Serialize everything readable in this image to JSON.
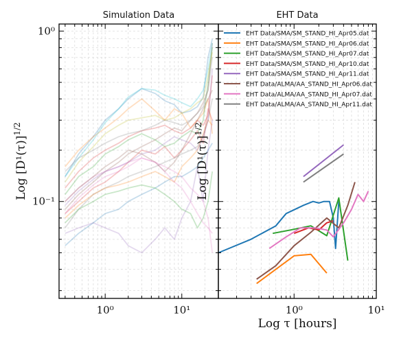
{
  "chart_data": [
    {
      "type": "line",
      "title": "Simulation Data",
      "ylabel": "Log [D¹(τ)]^1/2",
      "xlabel": "",
      "xscale": "log",
      "yscale": "log",
      "xlim": [
        0.25,
        30
      ],
      "ylim": [
        0.027,
        1.1
      ],
      "x_ticks": [
        1,
        10
      ],
      "x_tick_labels": [
        "10⁰",
        "10¹"
      ],
      "y_ticks": [
        0.1,
        1
      ],
      "y_tick_labels": [
        "10⁻¹",
        "10⁰"
      ],
      "grid": true,
      "series_alpha": 0.25,
      "colors": [
        "#1f77b4",
        "#ff7f0e",
        "#2ca02c",
        "#d62728",
        "#9467bd",
        "#8c564b",
        "#e377c2",
        "#7f7f7f",
        "#bcbd22",
        "#17becf"
      ],
      "x": [
        0.3,
        0.45,
        0.7,
        1.0,
        1.5,
        2.0,
        3.0,
        4.5,
        6.0,
        8.0,
        10.0,
        13.0,
        16.0,
        19.0,
        22.0,
        25.0
      ],
      "series": [
        {
          "values": [
            0.14,
            0.19,
            0.24,
            0.3,
            0.35,
            0.4,
            0.46,
            0.43,
            0.39,
            0.37,
            0.33,
            0.34,
            0.36,
            0.41,
            0.7,
            0.9
          ]
        },
        {
          "values": [
            0.16,
            0.2,
            0.24,
            0.27,
            0.31,
            0.35,
            0.4,
            0.34,
            0.3,
            0.35,
            0.33,
            0.27,
            0.3,
            0.33,
            0.4,
            0.25
          ]
        },
        {
          "values": [
            0.11,
            0.14,
            0.16,
            0.19,
            0.21,
            0.23,
            0.25,
            0.23,
            0.21,
            0.22,
            0.24,
            0.26,
            0.25,
            0.3,
            0.5,
            0.8
          ]
        },
        {
          "values": [
            0.085,
            0.1,
            0.12,
            0.13,
            0.15,
            0.17,
            0.2,
            0.19,
            0.21,
            0.18,
            0.2,
            0.23,
            0.26,
            0.22,
            0.35,
            0.3
          ]
        },
        {
          "values": [
            0.065,
            0.07,
            0.075,
            0.07,
            0.065,
            0.055,
            0.05,
            0.06,
            0.07,
            0.06,
            0.08,
            0.1,
            0.16,
            0.1,
            0.2,
            0.3
          ]
        },
        {
          "values": [
            0.09,
            0.11,
            0.13,
            0.15,
            0.17,
            0.19,
            0.21,
            0.23,
            0.25,
            0.27,
            0.26,
            0.3,
            0.33,
            0.38,
            0.45,
            0.85
          ]
        },
        {
          "values": [
            0.1,
            0.12,
            0.14,
            0.15,
            0.16,
            0.17,
            0.18,
            0.17,
            0.16,
            0.15,
            0.14,
            0.12,
            0.11,
            0.1,
            0.08,
            0.05
          ]
        },
        {
          "values": [
            0.07,
            0.09,
            0.11,
            0.12,
            0.13,
            0.14,
            0.15,
            0.16,
            0.17,
            0.18,
            0.19,
            0.2,
            0.21,
            0.24,
            0.3,
            0.4
          ]
        },
        {
          "values": [
            0.13,
            0.17,
            0.21,
            0.25,
            0.28,
            0.3,
            0.31,
            0.32,
            0.3,
            0.31,
            0.33,
            0.35,
            0.38,
            0.4,
            0.55,
            0.75
          ]
        },
        {
          "values": [
            0.14,
            0.18,
            0.23,
            0.29,
            0.35,
            0.41,
            0.46,
            0.45,
            0.42,
            0.4,
            0.38,
            0.36,
            0.4,
            0.45,
            0.6,
            0.85
          ]
        },
        {
          "values": [
            0.055,
            0.065,
            0.075,
            0.085,
            0.09,
            0.1,
            0.11,
            0.12,
            0.13,
            0.14,
            0.14,
            0.15,
            0.16,
            0.18,
            0.2,
            0.22
          ]
        },
        {
          "values": [
            0.08,
            0.095,
            0.11,
            0.12,
            0.125,
            0.13,
            0.14,
            0.15,
            0.14,
            0.13,
            0.16,
            0.18,
            0.2,
            0.25,
            0.3,
            0.28
          ]
        },
        {
          "values": [
            0.075,
            0.09,
            0.1,
            0.11,
            0.115,
            0.12,
            0.125,
            0.12,
            0.11,
            0.1,
            0.09,
            0.085,
            0.07,
            0.08,
            0.1,
            0.15
          ]
        },
        {
          "values": [
            0.12,
            0.15,
            0.18,
            0.2,
            0.22,
            0.24,
            0.26,
            0.27,
            0.28,
            0.26,
            0.25,
            0.27,
            0.3,
            0.28,
            0.32,
            0.55
          ]
        },
        {
          "values": [
            0.095,
            0.115,
            0.135,
            0.15,
            0.16,
            0.17,
            0.19,
            0.2,
            0.22,
            0.24,
            0.23,
            0.22,
            0.2,
            0.24,
            0.3,
            0.6
          ]
        },
        {
          "values": [
            0.1,
            0.12,
            0.14,
            0.16,
            0.18,
            0.2,
            0.19,
            0.17,
            0.15,
            0.17,
            0.2,
            0.25,
            0.3,
            0.35,
            0.4,
            0.45
          ]
        },
        {
          "values": [
            0.085,
            0.105,
            0.125,
            0.14,
            0.15,
            0.16,
            0.18,
            0.17,
            0.15,
            0.13,
            0.12,
            0.1,
            0.085,
            0.075,
            0.07,
            0.065
          ]
        },
        {
          "values": [
            0.15,
            0.18,
            0.2,
            0.22,
            0.24,
            0.25,
            0.26,
            0.28,
            0.3,
            0.29,
            0.28,
            0.3,
            0.33,
            0.36,
            0.45,
            0.7
          ]
        }
      ]
    },
    {
      "type": "line",
      "title": "EHT Data",
      "xlabel": "Log τ [hours]",
      "ylabel": "Log [D¹(τ)]^1/2",
      "xscale": "log",
      "yscale": "log",
      "xlim": [
        0.12,
        10
      ],
      "ylim": [
        0.027,
        1.1
      ],
      "x_ticks": [
        1,
        10
      ],
      "x_tick_labels": [
        "10⁰",
        "10¹"
      ],
      "grid": true,
      "legend_position": "top",
      "series": [
        {
          "name": "EHT Data/SMA/SM_STAND_HI_Apr05.dat",
          "color": "#1f77b4",
          "x": [
            0.12,
            0.3,
            0.6,
            0.8,
            1.3,
            1.7,
            2.0,
            2.3,
            2.7,
            3.0,
            3.2,
            3.5
          ],
          "values": [
            0.05,
            0.06,
            0.072,
            0.085,
            0.095,
            0.1,
            0.098,
            0.1,
            0.1,
            0.08,
            0.053,
            0.1
          ]
        },
        {
          "name": "EHT Data/SMA/SM_STAND_HI_Apr06.dat",
          "color": "#ff7f0e",
          "x": [
            0.35,
            0.6,
            1.0,
            1.6,
            2.5
          ],
          "values": [
            0.033,
            0.04,
            0.048,
            0.049,
            0.038
          ]
        },
        {
          "name": "EHT Data/SMA/SM_STAND_HI_Apr07.dat",
          "color": "#2ca02c",
          "x": [
            0.55,
            0.9,
            1.6,
            2.5,
            3.5,
            4.5
          ],
          "values": [
            0.065,
            0.068,
            0.072,
            0.063,
            0.105,
            0.045
          ]
        },
        {
          "name": "EHT Data/SMA/SM_STAND_HI_Apr10.dat",
          "color": "#d62728",
          "x": [
            1.0,
            1.5,
            2.0,
            2.5,
            3.0
          ],
          "values": [
            0.065,
            0.07,
            0.068,
            0.075,
            0.077
          ]
        },
        {
          "name": "EHT Data/SMA/SM_STAND_HI_Apr11.dat",
          "color": "#9467bd",
          "x": [
            1.3,
            4.0
          ],
          "values": [
            0.14,
            0.215
          ]
        },
        {
          "name": "EHT Data/ALMA/AA_STAND_HI_Apr06.dat",
          "color": "#8c564b",
          "x": [
            0.35,
            0.6,
            1.0,
            1.6,
            2.5,
            3.5,
            4.5,
            5.5
          ],
          "values": [
            0.035,
            0.042,
            0.055,
            0.066,
            0.08,
            0.07,
            0.095,
            0.13
          ]
        },
        {
          "name": "EHT Data/ALMA/AA_STAND_HI_Apr07.dat",
          "color": "#e377c2",
          "x": [
            0.5,
            0.8,
            1.2,
            1.8,
            2.5,
            3.0,
            4.0,
            5.0,
            6.0,
            7.0,
            8.0
          ],
          "values": [
            0.053,
            0.062,
            0.07,
            0.07,
            0.068,
            0.062,
            0.075,
            0.09,
            0.11,
            0.1,
            0.115
          ]
        },
        {
          "name": "EHT Data/ALMA/AA_STAND_HI_Apr11.dat",
          "color": "#7f7f7f",
          "x": [
            1.3,
            4.0
          ],
          "values": [
            0.13,
            0.19
          ]
        }
      ]
    }
  ]
}
